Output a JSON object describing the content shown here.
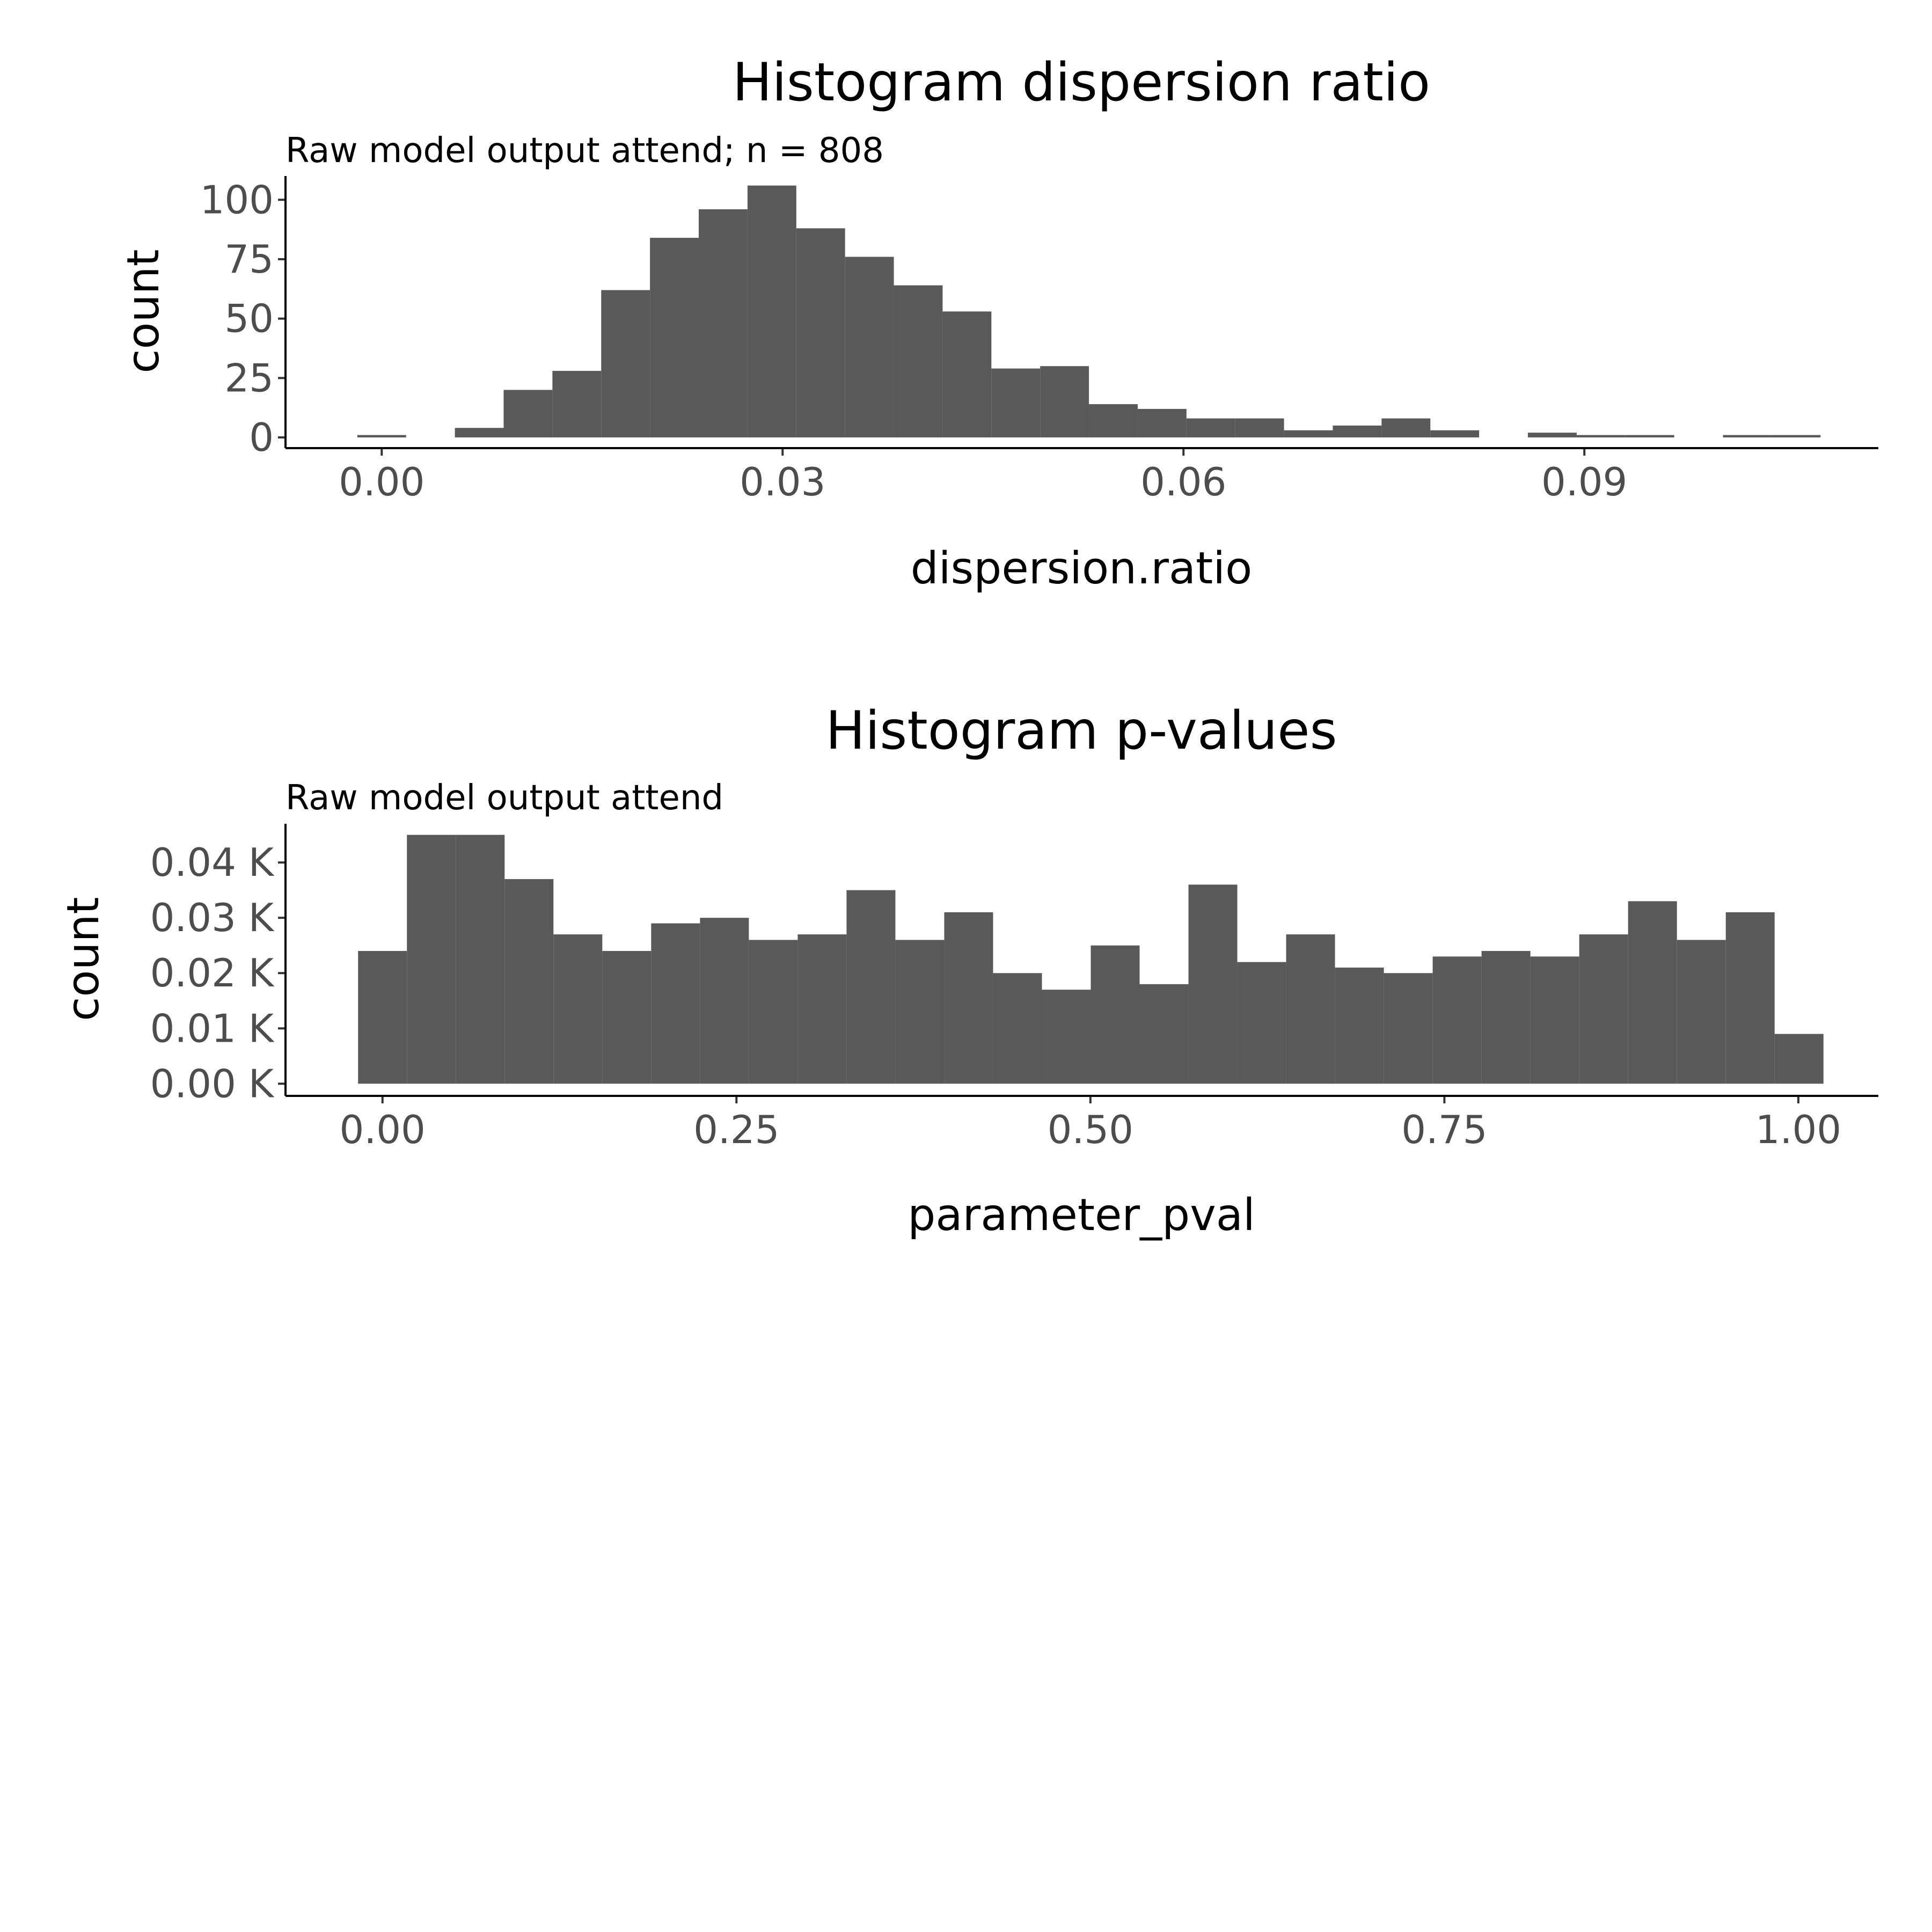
{
  "chart_data": [
    {
      "type": "bar",
      "title": "Histogram dispersion ratio",
      "subtitle": "Raw model output attend; n = 808",
      "xlabel": "dispersion.ratio",
      "ylabel": "count",
      "xlim": [
        -0.0072,
        0.112
      ],
      "ylim": [
        -4.5,
        110
      ],
      "x_ticks": [
        0,
        0.03,
        0.06,
        0.09
      ],
      "x_tick_labels": [
        "0.00",
        "0.03",
        "0.06",
        "0.09"
      ],
      "y_ticks": [
        0,
        25,
        50,
        75,
        100
      ],
      "y_tick_labels": [
        "0",
        "25",
        "50",
        "75",
        "100"
      ],
      "bin_width": 0.00365,
      "bins_x": [
        0.0,
        0.00365,
        0.0073,
        0.01095,
        0.0146,
        0.01825,
        0.0219,
        0.02555,
        0.0292,
        0.03285,
        0.0365,
        0.04015,
        0.0438,
        0.04745,
        0.0511,
        0.05475,
        0.0584,
        0.06205,
        0.0657,
        0.06935,
        0.073,
        0.07665,
        0.0803,
        0.08395,
        0.0876,
        0.09125,
        0.0949,
        0.09855,
        0.1022,
        0.10585
      ],
      "counts": [
        1,
        0,
        4,
        20,
        28,
        62,
        84,
        96,
        106,
        88,
        76,
        64,
        53,
        29,
        30,
        14,
        12,
        8,
        8,
        3,
        5,
        8,
        3,
        0,
        2,
        1,
        1,
        0,
        1,
        1
      ],
      "bar_color": "#595959",
      "grid": false
    },
    {
      "type": "bar",
      "title": "Histogram p-values",
      "subtitle": "Raw model output attend",
      "xlabel": "parameter_pval",
      "ylabel": "count",
      "xlim": [
        -0.0685,
        1.0565
      ],
      "ylim": [
        -0.0022,
        0.047
      ],
      "x_ticks": [
        0,
        0.25,
        0.5,
        0.75,
        1
      ],
      "x_tick_labels": [
        "0.00",
        "0.25",
        "0.50",
        "0.75",
        "1.00"
      ],
      "y_ticks": [
        0,
        0.01,
        0.02,
        0.03,
        0.04
      ],
      "y_tick_labels": [
        "0.00 K",
        "0.01 K",
        "0.02 K",
        "0.03 K",
        "0.04 K"
      ],
      "bin_width": 0.0345,
      "bins_x": [
        0.0,
        0.0345,
        0.069,
        0.1035,
        0.138,
        0.1725,
        0.207,
        0.2415,
        0.276,
        0.3105,
        0.345,
        0.3795,
        0.414,
        0.4485,
        0.483,
        0.5175,
        0.552,
        0.5865,
        0.621,
        0.6555,
        0.69,
        0.7245,
        0.759,
        0.7935,
        0.828,
        0.8625,
        0.897,
        0.9315,
        0.966,
        1.0005
      ],
      "counts": [
        0.024,
        0.045,
        0.045,
        0.037,
        0.027,
        0.024,
        0.029,
        0.03,
        0.026,
        0.027,
        0.035,
        0.026,
        0.031,
        0.02,
        0.017,
        0.025,
        0.018,
        0.036,
        0.022,
        0.027,
        0.021,
        0.02,
        0.023,
        0.024,
        0.023,
        0.027,
        0.033,
        0.026,
        0.031,
        0.009
      ],
      "bar_color": "#595959",
      "grid": false
    }
  ]
}
